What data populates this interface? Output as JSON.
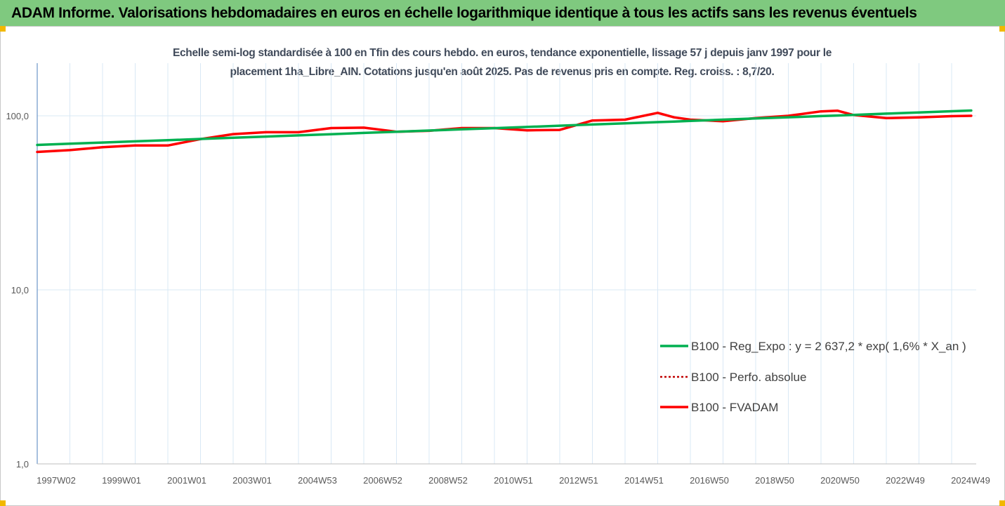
{
  "header": {
    "title": "ADAM Informe. Valorisations hebdomadaires en euros en échelle logarithmique identique à tous les actifs sans les revenus éventuels"
  },
  "chart_data": {
    "type": "line",
    "title": "",
    "subtitle_lines": [
      "Echelle semi-log standardisée à 100 en Tfin des cours hebdo. en euros, tendance exponentielle, lissage 57 j depuis janv 1997 pour le",
      "placement 1ha_Libre_AIN. Cotations jusqu'en août 2025. Pas de revenus pris en compte. Reg. croiss. : 8,7/20."
    ],
    "yscale": "log",
    "ylim": [
      1,
      200
    ],
    "yticks": [
      "100,0",
      "10,0",
      "1,0"
    ],
    "ytick_values": [
      100,
      10,
      1
    ],
    "grid": "vertical",
    "legend_position": "bottom-right",
    "categories": [
      "1997W02",
      "1999W01",
      "2001W01",
      "2003W01",
      "2004W53",
      "2006W52",
      "2008W52",
      "2010W51",
      "2012W51",
      "2014W51",
      "2016W50",
      "2018W50",
      "2020W50",
      "2022W49",
      "2024W49"
    ],
    "x": [
      1997.0,
      1998.0,
      1999.0,
      2000.0,
      2001.0,
      2002.0,
      2003.0,
      2004.0,
      2005.0,
      2006.0,
      2007.0,
      2008.0,
      2009.0,
      2010.0,
      2011.0,
      2012.0,
      2013.0,
      2014.0,
      2015.0,
      2016.0,
      2016.5,
      2017.0,
      2018.0,
      2019.0,
      2020.0,
      2021.0,
      2021.5,
      2022.0,
      2023.0,
      2024.0,
      2025.0,
      2025.6
    ],
    "series": [
      {
        "name": "B100 - Reg_Expo : y = 2 637,2 * exp( 1,6% *  X_an )",
        "color": "#00b050",
        "style": "solid",
        "values": [
          68.0,
          69.1,
          70.2,
          71.3,
          72.4,
          73.6,
          74.8,
          76.0,
          77.2,
          78.4,
          79.7,
          81.0,
          82.3,
          83.6,
          84.9,
          86.3,
          87.7,
          89.1,
          90.5,
          92.0,
          92.7,
          93.5,
          95.0,
          96.5,
          98.1,
          99.6,
          100.4,
          101.2,
          102.9,
          104.5,
          106.2,
          107.2
        ]
      },
      {
        "name": "B100 - Perfo. absolue",
        "color": "#c00000",
        "style": "dotted",
        "values": [
          62.0,
          63.5,
          66.0,
          67.5,
          67.5,
          73.5,
          78.5,
          80.5,
          80.5,
          85.0,
          85.5,
          81.0,
          82.0,
          85.0,
          85.0,
          82.5,
          83.0,
          94.0,
          95.0,
          104.0,
          98.0,
          95.0,
          93.0,
          97.0,
          100.0,
          106.0,
          107.0,
          101.0,
          97.0,
          98.0,
          99.5,
          100.0
        ]
      },
      {
        "name": "B100 - FVADAM",
        "color": "#ff0000",
        "style": "solid",
        "values": [
          62.0,
          63.5,
          66.0,
          67.5,
          67.5,
          73.5,
          78.5,
          80.5,
          80.5,
          85.0,
          85.5,
          81.0,
          82.0,
          85.0,
          85.0,
          82.5,
          83.0,
          94.0,
          95.0,
          104.0,
          98.0,
          95.0,
          93.0,
          97.0,
          100.0,
          106.0,
          107.0,
          101.0,
          97.0,
          98.0,
          99.5,
          100.0
        ]
      }
    ]
  }
}
